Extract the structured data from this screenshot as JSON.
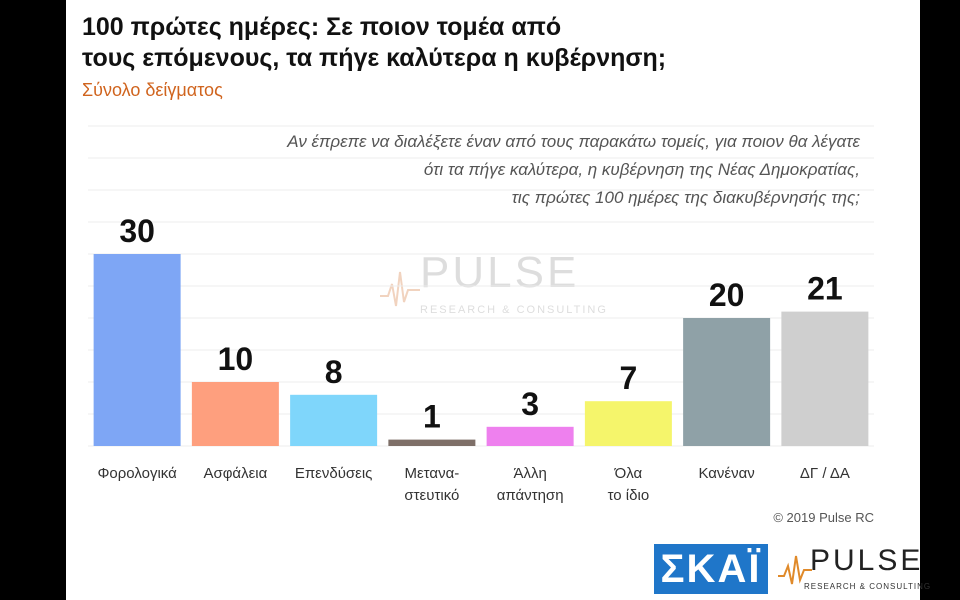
{
  "header": {
    "title_line1": "100 πρώτες ημέρες: Σε ποιον τομέα από",
    "title_line2": "τους επόμενους, τα πήγε καλύτερα η κυβέρνηση;",
    "subtitle": "Σύνολο δείγματος"
  },
  "question": {
    "line1": "Αν έπρεπε να διαλέξετε έναν από τους παρακάτω τομείς, για ποιον θα λέγατε",
    "line2": "ότι τα πήγε καλύτερα, η κυβέρνηση της Νέας Δημοκρατίας,",
    "line3": "τις πρώτες 100 ημέρες της διακυβέρνησής της;"
  },
  "chart_data": {
    "type": "bar",
    "categories": [
      "Φορολογικά",
      "Ασφάλεια",
      "Επενδύσεις",
      "Μετανα-\nστευτικό",
      "Άλλη\nαπάντηση",
      "Όλα\nτο ίδιο",
      "Κανέναν",
      "ΔΓ / ΔΑ"
    ],
    "values": [
      30,
      10,
      8,
      1,
      3,
      7,
      20,
      21
    ],
    "colors": [
      "#7ea6f5",
      "#fe9f7e",
      "#7fd6fb",
      "#7e6f68",
      "#ee80ee",
      "#f5f56b",
      "#8fa1a7",
      "#cfcfcf"
    ],
    "ylim": [
      0,
      30
    ],
    "grid": true,
    "data_labels": true
  },
  "footer": {
    "copyright": "© 2019 Pulse RC"
  },
  "watermark": {
    "word": "PULSE",
    "tagline": "RESEARCH & CONSULTING"
  },
  "logos": {
    "skai": "ΣΚΑΪ",
    "pulse_word": "PULSE",
    "pulse_tagline": "RESEARCH & CONSULTING"
  }
}
